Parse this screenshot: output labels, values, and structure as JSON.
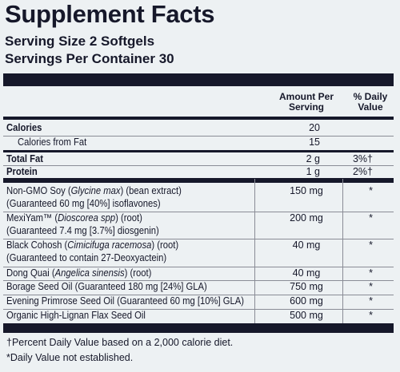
{
  "title": "Supplement Facts",
  "serving_size": "Serving Size 2 Softgels",
  "servings_per_container": "Servings Per Container 30",
  "table": {
    "header": {
      "amount": "Amount Per Serving",
      "daily_value": "% Daily Value"
    },
    "rows": [
      {
        "name": [
          [
            "Calories"
          ]
        ],
        "amount": "20"
      },
      {
        "name": [
          [
            "Calories from Fat"
          ]
        ],
        "amount": "15"
      },
      {
        "name": [
          [
            "Total Fat"
          ]
        ],
        "amount": "2 g",
        "daily_value": "3%†"
      },
      {
        "name": [
          [
            "Protein"
          ]
        ],
        "amount": "1 g",
        "daily_value": "2%†"
      },
      {
        "name": [
          [
            "Non-GMO Soy (",
            "Glycine max",
            ") (bean extract)"
          ],
          [
            "(Guaranteed 60 mg [40%] isoflavones)"
          ]
        ],
        "amount": "150 mg",
        "daily_value": "*"
      },
      {
        "name": [
          [
            "MexiYam™ (",
            "Dioscorea spp",
            ") (root)"
          ],
          [
            "(Guaranteed 7.4 mg [3.7%] diosgenin)"
          ]
        ],
        "amount": "200 mg",
        "daily_value": "*"
      },
      {
        "name": [
          [
            "Black Cohosh (",
            "Cimicifuga racemosa",
            ") (root)"
          ],
          [
            "(Guaranteed to contain 27-Deoxyactein)"
          ]
        ],
        "amount": "40 mg",
        "daily_value": "*"
      },
      {
        "name": [
          [
            "Dong Quai (",
            "Angelica sinensis",
            ") (root)"
          ]
        ],
        "amount": "40 mg",
        "daily_value": "*"
      },
      {
        "name": [
          [
            "Borage Seed Oil (Guaranteed 180 mg [24%] GLA)"
          ]
        ],
        "amount": "750 mg",
        "daily_value": "*"
      },
      {
        "name": [
          [
            "Evening Primrose Seed Oil (Guaranteed 60 mg [10%] GLA)"
          ]
        ],
        "amount": "600 mg",
        "daily_value": "*"
      },
      {
        "name": [
          [
            "Organic High-Lignan Flax Seed Oil"
          ]
        ],
        "amount": "500 mg",
        "daily_value": "*"
      }
    ]
  },
  "footnotes": [
    "†Percent Daily Value based on a 2,000 calorie diet.",
    "*Daily Value not established."
  ]
}
